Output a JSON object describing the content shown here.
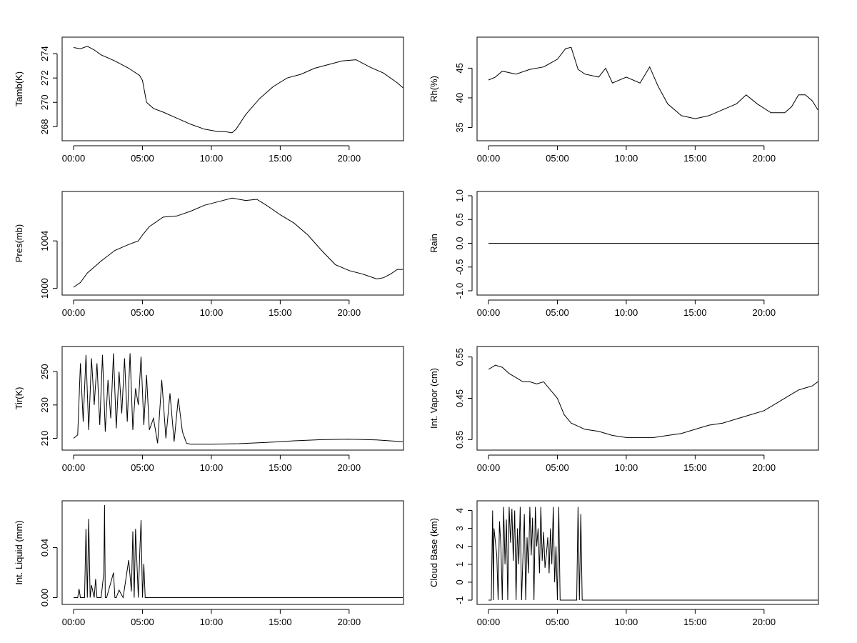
{
  "chart_data": [
    {
      "type": "line",
      "ylabel": "Tamb(K)",
      "x_ticks": [
        "00:00",
        "05:00",
        "10:00",
        "15:00",
        "20:00"
      ],
      "y_ticks": [
        "268",
        "270",
        "272",
        "274"
      ],
      "ylim": [
        267.2,
        275.0
      ],
      "x_hours": [
        0,
        0.5,
        1,
        1.5,
        2,
        3,
        4,
        4.8,
        5.0,
        5.3,
        5.8,
        6.5,
        7.5,
        8.5,
        9.5,
        10.5,
        11.0,
        11.5,
        11.8,
        12.5,
        13.5,
        14.5,
        15.5,
        16.5,
        17.5,
        18.5,
        19.5,
        20.5,
        21.5,
        22.5,
        23.5,
        23.9
      ],
      "y": [
        274.5,
        274.4,
        274.6,
        274.3,
        273.9,
        273.4,
        272.8,
        272.2,
        271.8,
        270.0,
        269.5,
        269.2,
        268.7,
        268.2,
        267.8,
        267.6,
        267.6,
        267.5,
        267.8,
        269.0,
        270.3,
        271.3,
        272.0,
        272.3,
        272.8,
        273.1,
        273.4,
        273.5,
        272.9,
        272.4,
        271.6,
        271.2
      ]
    },
    {
      "type": "line",
      "ylabel": "Rh(%)",
      "x_ticks": [
        "00:00",
        "05:00",
        "10:00",
        "15:00",
        "20:00"
      ],
      "y_ticks": [
        "35",
        "40",
        "45"
      ],
      "ylim": [
        33.5,
        49.5
      ],
      "x_hours": [
        0,
        0.5,
        1,
        2,
        3,
        4,
        5,
        5.6,
        6.0,
        6.5,
        7,
        8,
        8.5,
        9,
        10,
        11,
        11.7,
        12.3,
        13,
        14,
        15,
        16,
        17,
        18,
        18.7,
        19.5,
        20.5,
        21.5,
        22,
        22.5,
        23,
        23.5,
        23.9
      ],
      "y": [
        43.0,
        43.5,
        44.5,
        44.0,
        44.8,
        45.2,
        46.5,
        48.3,
        48.5,
        44.8,
        44.0,
        43.5,
        45.0,
        42.5,
        43.5,
        42.5,
        45.2,
        42.0,
        39.0,
        37.0,
        36.5,
        37.0,
        38.0,
        39.0,
        40.5,
        39.0,
        37.5,
        37.5,
        38.5,
        40.5,
        40.5,
        39.5,
        38.0
      ]
    },
    {
      "type": "line",
      "ylabel": "Pres(mb)",
      "x_ticks": [
        "00:00",
        "05:00",
        "10:00",
        "15:00",
        "20:00"
      ],
      "y_ticks": [
        "1000",
        "1004"
      ],
      "ylim": [
        999.8,
        1007.8
      ],
      "x_hours": [
        0,
        0.5,
        1,
        2,
        3,
        4,
        4.7,
        5.0,
        5.5,
        6.5,
        7.5,
        8.5,
        9.5,
        10.5,
        11.5,
        12.5,
        13.3,
        14,
        15,
        16,
        17,
        18,
        19,
        20,
        21,
        22,
        22.5,
        23,
        23.5,
        23.9
      ],
      "y": [
        1000.1,
        1000.5,
        1001.3,
        1002.3,
        1003.2,
        1003.7,
        1004.0,
        1004.5,
        1005.2,
        1006.0,
        1006.1,
        1006.5,
        1007.0,
        1007.3,
        1007.6,
        1007.4,
        1007.5,
        1007.0,
        1006.2,
        1005.5,
        1004.5,
        1003.2,
        1002.0,
        1001.5,
        1001.2,
        1000.8,
        1000.9,
        1001.2,
        1001.6,
        1001.6
      ]
    },
    {
      "type": "line",
      "ylabel": "Rain",
      "x_ticks": [
        "00:00",
        "05:00",
        "10:00",
        "15:00",
        "20:00"
      ],
      "y_ticks": [
        "-1.0",
        "-0.5",
        "0.0",
        "0.5",
        "1.0"
      ],
      "ylim": [
        -1.0,
        1.0
      ],
      "x_hours": [
        0,
        24
      ],
      "y": [
        0,
        0
      ]
    },
    {
      "type": "line",
      "ylabel": "Tir(K)",
      "x_ticks": [
        "00:00",
        "05:00",
        "10:00",
        "15:00",
        "20:00"
      ],
      "y_ticks": [
        "210",
        "230",
        "250"
      ],
      "ylim": [
        205.5,
        262.5
      ],
      "x_hours": [
        0,
        0.3,
        0.5,
        0.7,
        0.9,
        1.1,
        1.3,
        1.5,
        1.7,
        1.9,
        2.1,
        2.3,
        2.5,
        2.7,
        2.9,
        3.1,
        3.3,
        3.5,
        3.7,
        3.9,
        4.1,
        4.3,
        4.5,
        4.7,
        4.9,
        5.1,
        5.3,
        5.5,
        5.8,
        6.1,
        6.4,
        6.7,
        7.0,
        7.3,
        7.6,
        7.9,
        8.2,
        8.5,
        10,
        12,
        14,
        16,
        18,
        20,
        22,
        23.9
      ],
      "y": [
        210,
        212,
        255,
        220,
        260,
        215,
        258,
        230,
        255,
        218,
        260,
        214,
        245,
        222,
        261,
        216,
        250,
        225,
        258,
        220,
        261,
        215,
        240,
        230,
        259,
        218,
        248,
        215,
        222,
        207,
        245,
        210,
        237,
        208,
        234,
        214,
        207,
        206.5,
        206.5,
        206.8,
        207.5,
        208.5,
        209.2,
        209.5,
        209,
        208
      ]
    },
    {
      "type": "line",
      "ylabel": "Int. Vapor (cm)",
      "x_ticks": [
        "00:00",
        "05:00",
        "10:00",
        "15:00",
        "20:00"
      ],
      "y_ticks": [
        "0.35",
        "0.45",
        "0.55"
      ],
      "ylim": [
        0.335,
        0.565
      ],
      "x_hours": [
        0,
        0.5,
        1,
        1.5,
        2,
        2.5,
        3,
        3.5,
        4,
        4.5,
        5,
        5.5,
        6,
        7,
        8,
        9,
        10,
        11,
        12,
        13,
        14,
        15,
        16,
        17,
        18,
        19,
        20,
        21,
        22,
        22.5,
        23,
        23.5,
        23.9
      ],
      "y": [
        0.52,
        0.53,
        0.525,
        0.51,
        0.5,
        0.49,
        0.49,
        0.485,
        0.49,
        0.47,
        0.45,
        0.41,
        0.39,
        0.375,
        0.37,
        0.36,
        0.355,
        0.355,
        0.355,
        0.36,
        0.365,
        0.375,
        0.385,
        0.39,
        0.4,
        0.41,
        0.42,
        0.44,
        0.46,
        0.47,
        0.475,
        0.48,
        0.49
      ]
    },
    {
      "type": "line",
      "ylabel": "Int. Liquid (mm)",
      "x_ticks": [
        "00:00",
        "05:00",
        "10:00",
        "15:00",
        "20:00"
      ],
      "y_ticks": [
        "0.00",
        "0.04"
      ],
      "ylim": [
        -0.002,
        0.074
      ],
      "x_hours": [
        0,
        0.3,
        0.4,
        0.5,
        0.8,
        0.9,
        1.0,
        1.1,
        1.2,
        1.3,
        1.5,
        1.6,
        1.7,
        2.0,
        2.2,
        2.25,
        2.3,
        2.4,
        2.7,
        2.9,
        3.0,
        3.1,
        3.3,
        3.6,
        4.0,
        4.2,
        4.3,
        4.4,
        4.5,
        4.7,
        4.8,
        4.9,
        5.0,
        5.1,
        5.2,
        5.3,
        10,
        15,
        20,
        23.9
      ],
      "y": [
        0,
        0,
        0.007,
        0,
        0,
        0.055,
        0,
        0.063,
        0,
        0.01,
        0,
        0.015,
        0,
        0,
        0.02,
        0.074,
        0,
        0,
        0.012,
        0.02,
        0,
        0,
        0.006,
        0,
        0.03,
        0.005,
        0.053,
        0,
        0.055,
        0,
        0.035,
        0.062,
        0,
        0.027,
        0,
        0,
        0,
        0,
        0,
        0
      ]
    },
    {
      "type": "line",
      "ylabel": "Cloud Base (km)",
      "x_ticks": [
        "00:00",
        "05:00",
        "10:00",
        "15:00",
        "20:00"
      ],
      "y_ticks": [
        "-1",
        "0",
        "1",
        "2",
        "3",
        "4"
      ],
      "ylim": [
        -1.0,
        4.3
      ],
      "x_hours": [
        0,
        0.2,
        0.3,
        0.35,
        0.4,
        0.6,
        0.7,
        0.8,
        0.9,
        1.0,
        1.1,
        1.2,
        1.3,
        1.4,
        1.5,
        1.6,
        1.7,
        1.8,
        1.9,
        2.0,
        2.1,
        2.2,
        2.3,
        2.4,
        2.6,
        2.7,
        2.8,
        2.9,
        3.0,
        3.1,
        3.2,
        3.3,
        3.4,
        3.5,
        3.6,
        3.7,
        3.8,
        3.9,
        4.0,
        4.1,
        4.2,
        4.3,
        4.4,
        4.5,
        4.6,
        4.7,
        4.8,
        4.9,
        5.0,
        5.1,
        5.2,
        5.6,
        6.0,
        6.4,
        6.5,
        6.6,
        6.7,
        6.8,
        6.9,
        10,
        15,
        20,
        23.9
      ],
      "y": [
        -1,
        -1,
        4.0,
        -1,
        3.0,
        1.5,
        -1,
        3.4,
        2.0,
        -1,
        4.2,
        1.0,
        3.5,
        -1,
        4.2,
        2.2,
        4.1,
        1.2,
        4.0,
        -1,
        3.0,
        1.0,
        4.2,
        -1,
        3.8,
        -1,
        2.5,
        0.5,
        4.2,
        1.5,
        3.6,
        -1,
        4.2,
        2.0,
        3.0,
        0.5,
        4.2,
        1.2,
        2.8,
        0.8,
        1.5,
        2.5,
        0.5,
        3.0,
        1.0,
        4.2,
        0.0,
        2.0,
        -1,
        4.2,
        -1,
        -1,
        -1,
        -1,
        4.2,
        -1,
        3.8,
        -1,
        -1,
        -1,
        -1,
        -1,
        -1
      ]
    }
  ]
}
